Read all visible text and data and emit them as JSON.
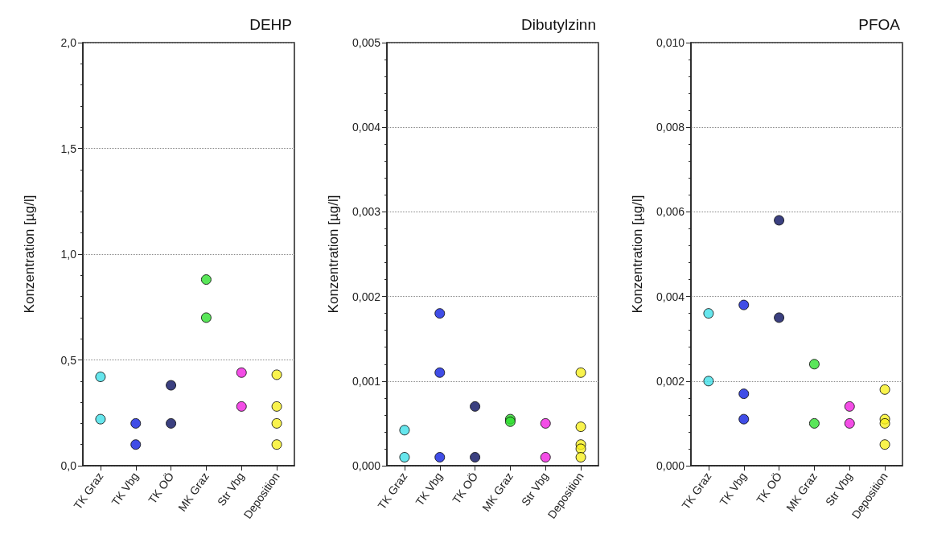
{
  "chart_data": [
    {
      "type": "scatter",
      "title": "DEHP",
      "ylabel": "Konzentration [µg/l]",
      "categories": [
        "TK Graz",
        "TK Vbg",
        "TK OÖ",
        "MK Graz",
        "Str Vbg",
        "Deposition"
      ],
      "ylim": [
        0,
        2
      ],
      "yticks": [
        {
          "value": 0,
          "label": "0,0"
        },
        {
          "value": 0.5,
          "label": "0,5"
        },
        {
          "value": 1,
          "label": "1,0"
        },
        {
          "value": 1.5,
          "label": "1,5"
        },
        {
          "value": 2,
          "label": "2,0"
        }
      ],
      "grid": "y",
      "marker": "circle",
      "series": [
        {
          "color": "#40e0e8",
          "x": [
            "TK Graz",
            "TK Graz"
          ],
          "values": [
            0.42,
            0.22
          ]
        },
        {
          "color": "#1020e0",
          "x": [
            "TK Vbg",
            "TK Vbg"
          ],
          "values": [
            0.2,
            0.1
          ]
        },
        {
          "color": "#0a1060",
          "x": [
            "TK OÖ",
            "TK OÖ"
          ],
          "values": [
            0.38,
            0.2
          ]
        },
        {
          "color": "#30e030",
          "x": [
            "MK Graz",
            "MK Graz"
          ],
          "values": [
            0.88,
            0.7
          ]
        },
        {
          "color": "#f020e0",
          "x": [
            "Str Vbg",
            "Str Vbg"
          ],
          "values": [
            0.44,
            0.28
          ]
        },
        {
          "color": "#f8f020",
          "x": [
            "Deposition",
            "Deposition",
            "Deposition",
            "Deposition"
          ],
          "values": [
            0.43,
            0.28,
            0.2,
            0.1
          ]
        }
      ]
    },
    {
      "type": "scatter",
      "title": "Dibutylzinn",
      "ylabel": "Konzentration [µg/l]",
      "categories": [
        "TK Graz",
        "TK Vbg",
        "TK OÖ",
        "MK Graz",
        "Str Vbg",
        "Deposition"
      ],
      "ylim": [
        0,
        0.005
      ],
      "yticks": [
        {
          "value": 0,
          "label": "0,000"
        },
        {
          "value": 0.001,
          "label": "0,001"
        },
        {
          "value": 0.002,
          "label": "0,002"
        },
        {
          "value": 0.003,
          "label": "0,003"
        },
        {
          "value": 0.004,
          "label": "0,004"
        },
        {
          "value": 0.005,
          "label": "0,005"
        }
      ],
      "grid": "y",
      "marker": "circle",
      "series": [
        {
          "color": "#40e0e8",
          "x": [
            "TK Graz",
            "TK Graz"
          ],
          "values": [
            0.00042,
            0.0001
          ]
        },
        {
          "color": "#1020e0",
          "x": [
            "TK Vbg",
            "TK Vbg",
            "TK Vbg"
          ],
          "values": [
            0.0018,
            0.0011,
            0.0001
          ]
        },
        {
          "color": "#0a1060",
          "x": [
            "TK OÖ",
            "TK OÖ"
          ],
          "values": [
            0.0007,
            0.0001
          ]
        },
        {
          "color": "#30e030",
          "x": [
            "MK Graz",
            "MK Graz"
          ],
          "values": [
            0.00055,
            0.00052
          ]
        },
        {
          "color": "#f020e0",
          "x": [
            "Str Vbg",
            "Str Vbg"
          ],
          "values": [
            0.0005,
            0.0001
          ]
        },
        {
          "color": "#f8f020",
          "x": [
            "Deposition",
            "Deposition",
            "Deposition",
            "Deposition",
            "Deposition"
          ],
          "values": [
            0.0011,
            0.00046,
            0.00025,
            0.0002,
            0.0001
          ]
        }
      ]
    },
    {
      "type": "scatter",
      "title": "PFOA",
      "ylabel": "Konzentration [µg/l]",
      "categories": [
        "TK Graz",
        "TK Vbg",
        "TK OÖ",
        "MK Graz",
        "Str Vbg",
        "Deposition"
      ],
      "ylim": [
        0,
        0.01
      ],
      "yticks": [
        {
          "value": 0,
          "label": "0,000"
        },
        {
          "value": 0.002,
          "label": "0,002"
        },
        {
          "value": 0.004,
          "label": "0,004"
        },
        {
          "value": 0.006,
          "label": "0,006"
        },
        {
          "value": 0.008,
          "label": "0,008"
        },
        {
          "value": 0.01,
          "label": "0,010"
        }
      ],
      "grid": "y",
      "marker": "circle",
      "series": [
        {
          "color": "#40e0e8",
          "x": [
            "TK Graz",
            "TK Graz"
          ],
          "values": [
            0.0036,
            0.002
          ]
        },
        {
          "color": "#1020e0",
          "x": [
            "TK Vbg",
            "TK Vbg",
            "TK Vbg"
          ],
          "values": [
            0.0038,
            0.0017,
            0.0011
          ]
        },
        {
          "color": "#0a1060",
          "x": [
            "TK OÖ",
            "TK OÖ"
          ],
          "values": [
            0.0058,
            0.0035
          ]
        },
        {
          "color": "#30e030",
          "x": [
            "MK Graz",
            "MK Graz"
          ],
          "values": [
            0.0024,
            0.001
          ]
        },
        {
          "color": "#f020e0",
          "x": [
            "Str Vbg",
            "Str Vbg"
          ],
          "values": [
            0.0014,
            0.001
          ]
        },
        {
          "color": "#f8f020",
          "x": [
            "Deposition",
            "Deposition",
            "Deposition",
            "Deposition"
          ],
          "values": [
            0.0018,
            0.0011,
            0.001,
            0.0005
          ]
        }
      ]
    }
  ]
}
